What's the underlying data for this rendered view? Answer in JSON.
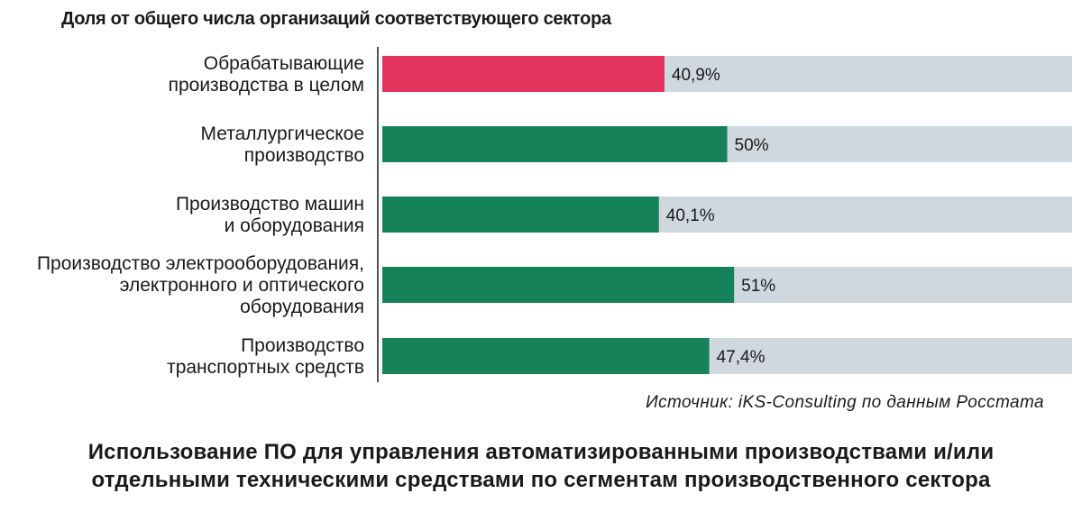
{
  "chart_data": {
    "type": "bar",
    "orientation": "horizontal",
    "subtitle": "Доля от общего числа организаций соответствующего сектора",
    "title_lines": [
      "Использование ПО для управления автоматизированными производствами и/или",
      "отдельными техническими средствами по сегментам производственного сектора"
    ],
    "source": "Источник: iKS-Consulting по данным Росстата",
    "xlim": [
      0,
      100
    ],
    "grid": false,
    "legend": "none",
    "track_color": "#cfd8df",
    "categories": [
      {
        "lines": [
          "Обрабатывающие",
          "производства в целом"
        ],
        "value": 40.9,
        "label": "40,9%",
        "color": "#e3325c"
      },
      {
        "lines": [
          "Металлургическое",
          "производство"
        ],
        "value": 50,
        "label": "50%",
        "color": "#168259"
      },
      {
        "lines": [
          "Производство машин",
          "и оборудования"
        ],
        "value": 40.1,
        "label": "40,1%",
        "color": "#168259"
      },
      {
        "lines": [
          "Производство электрооборудования,",
          "электронного и оптического",
          "оборудования"
        ],
        "value": 51,
        "label": "51%",
        "color": "#168259"
      },
      {
        "lines": [
          "Производство",
          "транспортных средств"
        ],
        "value": 47.4,
        "label": "47,4%",
        "color": "#168259"
      }
    ]
  }
}
